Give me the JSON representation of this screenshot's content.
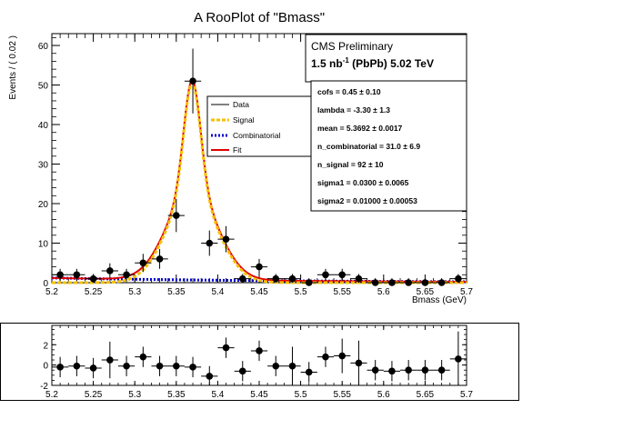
{
  "chart_data": [
    {
      "type": "scatter",
      "title": "A RooPlot of \"Bmass\"",
      "xlabel": "Bmass (GeV)",
      "ylabel": "Events / ( 0.02 )",
      "xlim": [
        5.2,
        5.7
      ],
      "ylim": [
        0,
        63
      ],
      "x_ticks": [
        "5.2",
        "5.25",
        "5.3",
        "5.35",
        "5.4",
        "5.45",
        "5.5",
        "5.55",
        "5.6",
        "5.65",
        "5.7"
      ],
      "y_ticks": [
        "0",
        "10",
        "20",
        "30",
        "40",
        "50",
        "60"
      ],
      "text_block": {
        "line1": "CMS Preliminary",
        "line2_prefix": "1.5 nb",
        "line2_exp": "-1",
        "line2_suffix": " (PbPb) 5.02 TeV"
      },
      "legend": {
        "placement": "center",
        "entries": [
          {
            "label": "Data",
            "color": "#000000",
            "style": "solid"
          },
          {
            "label": "Signal",
            "color": "#f5c000",
            "style": "dashed"
          },
          {
            "label": "Combinatorial",
            "color": "#0000cc",
            "style": "dotted"
          },
          {
            "label": "Fit",
            "color": "#e00000",
            "style": "solid"
          }
        ]
      },
      "params": [
        "cofs =  0.45 ± 0.10",
        "lambda = -3.30 ± 1.3",
        "mean =  5.3692 ± 0.0017",
        "n_combinatorial =  31.0 ± 6.9",
        "n_signal =  92 ± 10",
        "sigma1 =  0.0300 ± 0.0065",
        "sigma2 =  0.01000 ± 0.00053"
      ],
      "series": [
        {
          "name": "Data",
          "x": [
            5.21,
            5.23,
            5.25,
            5.27,
            5.29,
            5.31,
            5.33,
            5.35,
            5.37,
            5.39,
            5.41,
            5.43,
            5.45,
            5.47,
            5.49,
            5.51,
            5.53,
            5.55,
            5.57,
            5.59,
            5.61,
            5.63,
            5.65,
            5.67,
            5.69
          ],
          "y": [
            2,
            2,
            1,
            3,
            2,
            5,
            6,
            17,
            51,
            10,
            11,
            1,
            4,
            1,
            1,
            0,
            2,
            2,
            1,
            0,
            0,
            0,
            0,
            0,
            1
          ],
          "yerr": [
            1.5,
            1.5,
            1.2,
            1.9,
            1.5,
            2.3,
            2.5,
            4.2,
            8.2,
            3.2,
            3.3,
            1.2,
            2.0,
            1.2,
            1.2,
            1.0,
            1.5,
            1.5,
            1.2,
            1.0,
            1.0,
            1.0,
            1.0,
            1.0,
            1.2
          ]
        }
      ],
      "curves": {
        "combinatorial": {
          "norm": 1.2,
          "lambda": -3.3
        },
        "signal": {
          "mean": 5.3692,
          "sigma1": 0.03,
          "sigma2": 0.01,
          "cofs": 0.45,
          "norm": 50.5
        }
      }
    },
    {
      "type": "scatter",
      "title": "",
      "xlim": [
        5.2,
        5.7
      ],
      "ylim": [
        -2,
        3.9
      ],
      "x_ticks": [
        "5.2",
        "5.25",
        "5.3",
        "5.35",
        "5.4",
        "5.45",
        "5.5",
        "5.55",
        "5.6",
        "5.65",
        "5.7"
      ],
      "y_ticks": [
        "-2",
        "0",
        "2"
      ],
      "series": [
        {
          "name": "pull",
          "x": [
            5.21,
            5.23,
            5.25,
            5.27,
            5.29,
            5.31,
            5.33,
            5.35,
            5.37,
            5.39,
            5.41,
            5.43,
            5.45,
            5.47,
            5.49,
            5.51,
            5.53,
            5.55,
            5.57,
            5.59,
            5.61,
            5.63,
            5.65,
            5.67,
            5.69
          ],
          "y": [
            -0.2,
            -0.1,
            -0.3,
            0.5,
            -0.1,
            0.8,
            -0.1,
            -0.1,
            -0.2,
            -1.1,
            1.7,
            -0.6,
            1.4,
            -0.1,
            -0.1,
            -0.7,
            0.8,
            0.9,
            0.2,
            -0.5,
            -0.6,
            -0.5,
            -0.5,
            -0.5,
            0.6
          ],
          "yerr": [
            1.0,
            1.0,
            1.0,
            1.8,
            1.0,
            1.0,
            1.0,
            1.0,
            1.0,
            1.0,
            1.0,
            1.0,
            1.0,
            1.0,
            1.9,
            1.0,
            1.0,
            1.7,
            2.2,
            1.0,
            1.0,
            1.0,
            1.0,
            1.0,
            2.7
          ]
        }
      ]
    }
  ]
}
